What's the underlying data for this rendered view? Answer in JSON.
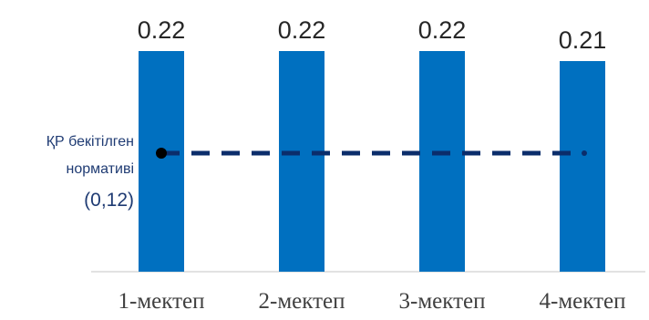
{
  "chart_data": {
    "type": "bar",
    "categories": [
      "1-мектеп",
      "2-мектеп",
      "3-мектеп",
      "4-мектеп"
    ],
    "values": [
      0.22,
      0.22,
      0.22,
      0.21
    ],
    "value_labels": [
      "0.22",
      "0.22",
      "0.22",
      "0.21"
    ],
    "bar_color": "#0070C0",
    "ylim": [
      0,
      0.25
    ],
    "grid": false,
    "reference_line": {
      "value": 0.12,
      "label_lines": [
        "ҚР бекітілген",
        "нормативі"
      ],
      "value_label": "(0,12)",
      "color": "#0B2D6B",
      "style": "dashed"
    }
  }
}
